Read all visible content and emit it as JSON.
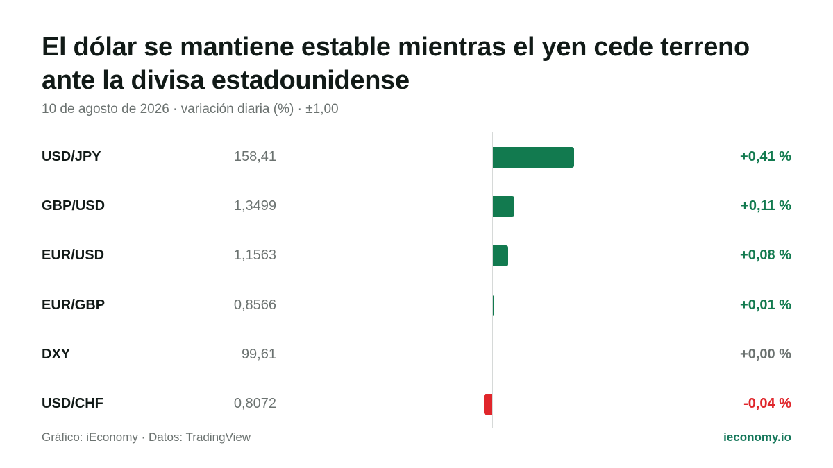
{
  "title": "El dólar se mantiene estable mientras el yen cede terreno ante la divisa estadounidense",
  "subtitle": "10 de agosto de 2026 · variación diaria (%) · ±1,00",
  "footer": {
    "source": "Gráfico: iEconomy · Datos: TradingView",
    "brand": "ieconomy.io"
  },
  "colors": {
    "positive": "#127a4f",
    "negative": "#e0262b",
    "neutral": "#6b7270"
  },
  "chart_data": {
    "type": "bar",
    "orientation": "horizontal",
    "title": "El dólar se mantiene estable mientras el yen cede terreno ante la divisa estadounidense",
    "subtitle": "10 de agosto de 2026 · variación diaria (%) · ±1,00",
    "xlim": [
      -1.0,
      1.0
    ],
    "grid": false,
    "categories": [
      "USD/JPY",
      "GBP/USD",
      "EUR/USD",
      "EUR/GBP",
      "DXY",
      "USD/CHF"
    ],
    "prices": [
      "158,41",
      "1,3499",
      "1,1563",
      "0,8566",
      "99,61",
      "0,8072"
    ],
    "values": [
      0.41,
      0.11,
      0.08,
      0.01,
      0.0,
      -0.04
    ],
    "value_labels": [
      "+0,41 %",
      "+0,11 %",
      "+0,08 %",
      "+0,01 %",
      "+0,00 %",
      "-0,04 %"
    ]
  }
}
